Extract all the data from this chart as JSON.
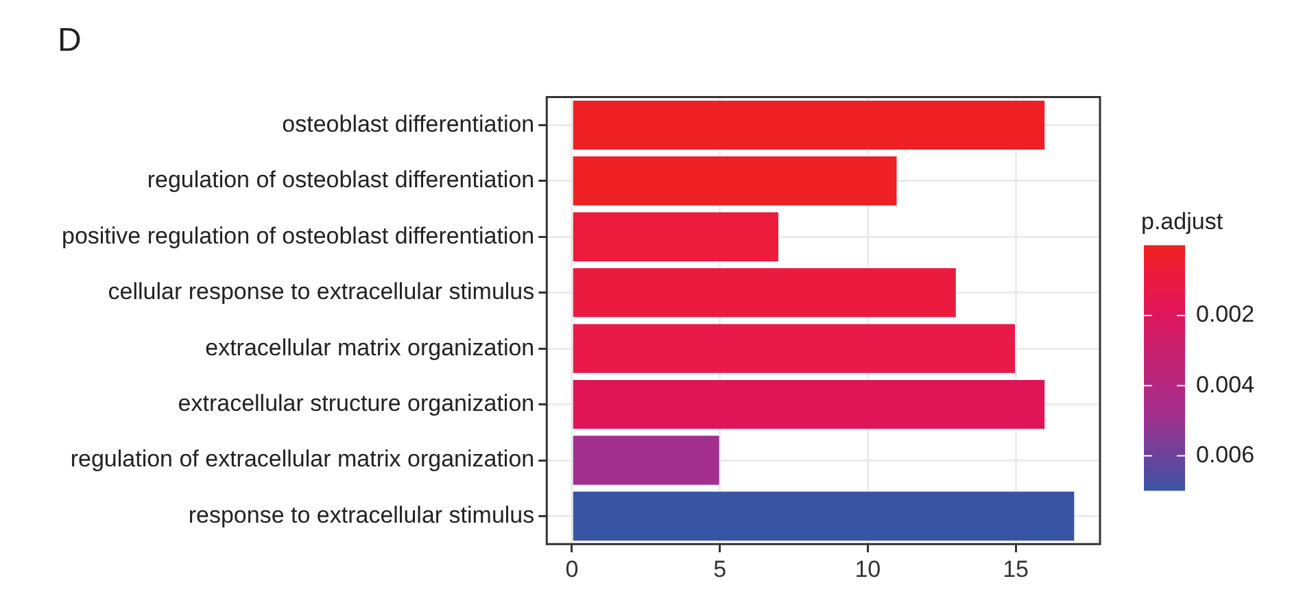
{
  "chart_data": {
    "type": "bar",
    "title": "D",
    "orientation": "horizontal",
    "categories": [
      "osteoblast differentiation",
      "regulation of osteoblast differentiation",
      "positive regulation of osteoblast differentiation",
      "cellular response to extracellular stimulus",
      "extracellular matrix organization",
      "extracellular structure organization",
      "regulation of extracellular matrix organization",
      "response to extracellular stimulus"
    ],
    "values": [
      16,
      11,
      7,
      13,
      15,
      16,
      5,
      17
    ],
    "colors": [
      "#ee2024",
      "#ee2024",
      "#ed1b3c",
      "#eb1b40",
      "#e9194a",
      "#e01558",
      "#a32f8e",
      "#3a54a4"
    ],
    "cvalues": [
      0.0001,
      0.0002,
      0.0008,
      0.001,
      0.0013,
      0.0018,
      0.0048,
      0.007
    ],
    "clabel": "p.adjust",
    "clim": [
      0.007,
      0
    ],
    "cticks": [
      0.002,
      0.004,
      0.006
    ],
    "xlim": [
      -0.85,
      17.85
    ],
    "xticks": [
      0,
      5,
      10,
      15
    ],
    "grid": true,
    "legend": false
  }
}
